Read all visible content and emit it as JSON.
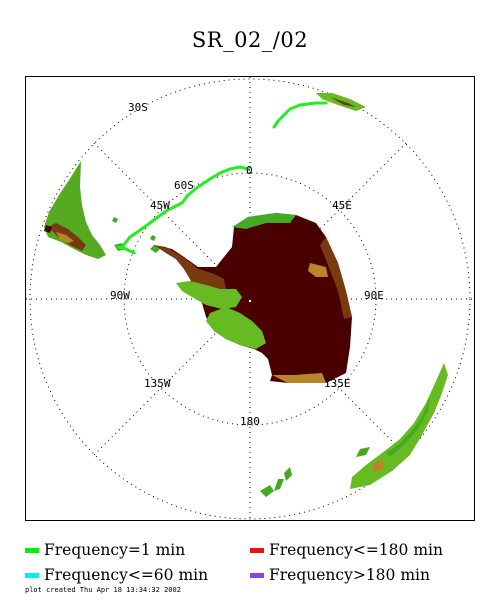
{
  "title": "SR_02_/02",
  "map": {
    "projection_labels": {
      "lat_30s": "30S",
      "lat_60s": "60S",
      "lon_0": "0",
      "lon_45w": "45W",
      "lon_45e": "45E",
      "lon_90w": "90W",
      "lon_90e": "90E",
      "lon_135w": "135W",
      "lon_135e": "135E",
      "lon_180": "180"
    },
    "colors": {
      "track": "#22ee22",
      "ice_plateau": "#4a0000",
      "elev_high": "#7a3a10",
      "elev_mid": "#b8862a",
      "elev_low": "#66bb22",
      "elev_coast": "#44aa22"
    }
  },
  "legend": [
    {
      "label": "Frequency=1 min",
      "color": "#00ee00"
    },
    {
      "label": "Frequency<=180 min",
      "color": "#ee1111"
    },
    {
      "label": "Frequency<=60 min",
      "color": "#00eeee"
    },
    {
      "label": "Frequency>180 min",
      "color": "#8844ee"
    }
  ],
  "footer": "plot created Thu Apr 18 13:34:32 2002"
}
